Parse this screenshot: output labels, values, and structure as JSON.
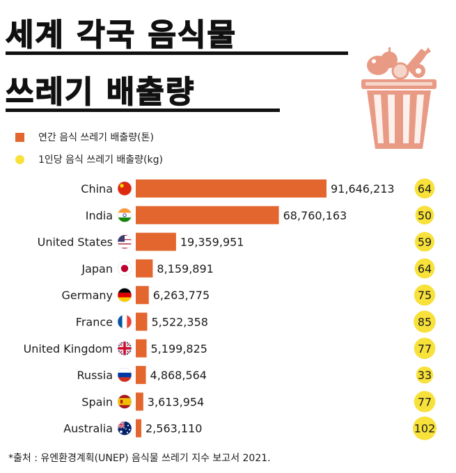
{
  "title": {
    "line1": "세계 각국 음식물",
    "line2": "쓰레기 배출량"
  },
  "legend": {
    "bar_label": "연간 음식 쓰레기 배출량(톤)",
    "dot_label": "1인당 음식 쓰레기 배출량(kg)"
  },
  "source": "*출처 :  유엔환경계획(UNEP) 음식물 쓰레기 지수 보고서 2021.",
  "colors": {
    "bar": "#e3662f",
    "dot": "#f7e13a",
    "bucket": "#e99a84",
    "bucket_light": "#f6d6cb"
  },
  "icons": {
    "bucket": "food-waste-bucket-icon"
  },
  "chart_data": {
    "type": "bar",
    "orientation": "horizontal",
    "categories": [
      "China",
      "India",
      "United States",
      "Japan",
      "Germany",
      "France",
      "United Kingdom",
      "Russia",
      "Spain",
      "Australia"
    ],
    "series": [
      {
        "name": "연간 음식 쓰레기 배출량(톤)",
        "values": [
          91646213,
          68760163,
          19359951,
          8159891,
          6263775,
          5522358,
          5199825,
          4868564,
          3613954,
          2563110
        ],
        "labels": [
          "91,646,213",
          "68,760,163",
          "19,359,951",
          "8,159,891",
          "6,263,775",
          "5,522,358",
          "5,199,825",
          "4,868,564",
          "3,613,954",
          "2,563,110"
        ]
      },
      {
        "name": "1인당 음식 쓰레기 배출량(kg)",
        "values": [
          64,
          50,
          59,
          64,
          75,
          85,
          77,
          33,
          77,
          102
        ]
      }
    ],
    "flags": [
      "china",
      "india",
      "usa",
      "japan",
      "germany",
      "france",
      "uk",
      "russia",
      "spain",
      "australia"
    ]
  }
}
